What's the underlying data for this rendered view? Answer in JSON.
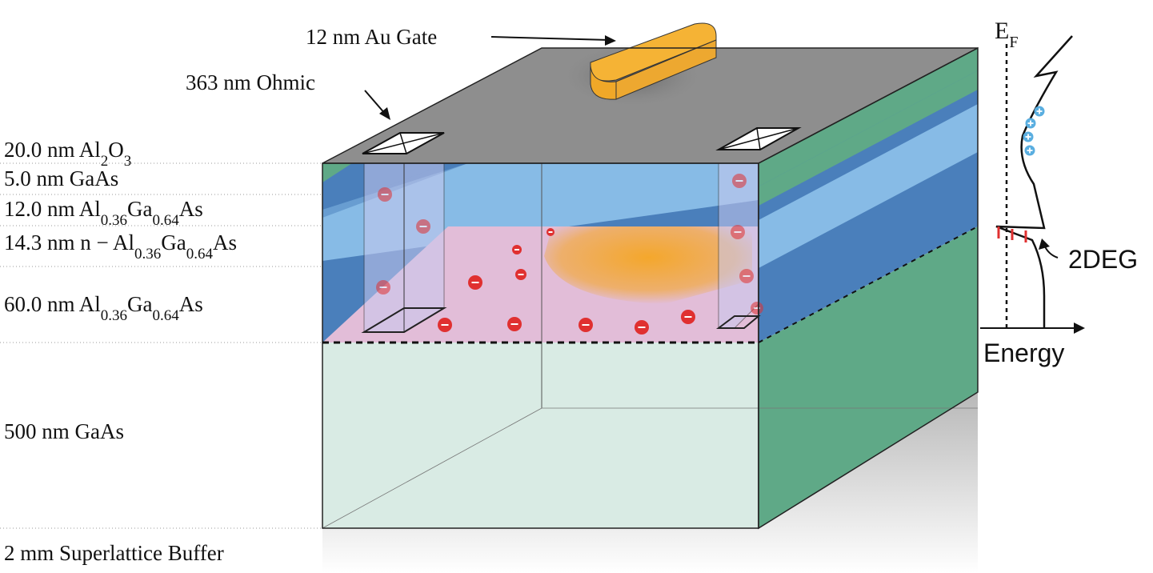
{
  "layers": [
    {
      "id": "al2o3",
      "prefix": "20.0 nm Al",
      "s1": "2",
      "mid": "O",
      "s2": "3",
      "suffix": ""
    },
    {
      "id": "gaas-cap",
      "prefix": "5.0 nm GaAs",
      "s1": "",
      "mid": "",
      "s2": "",
      "suffix": ""
    },
    {
      "id": "algaas-spacer",
      "prefix": "12.0 nm Al",
      "s1": "0.36",
      "mid": "Ga",
      "s2": "0.64",
      "suffix": "As"
    },
    {
      "id": "algaas-doped",
      "prefix": "14.3 nm n − Al",
      "s1": "0.36",
      "mid": "Ga",
      "s2": "0.64",
      "suffix": "As"
    },
    {
      "id": "algaas-barrier",
      "prefix": "60.0 nm Al",
      "s1": "0.36",
      "mid": "Ga",
      "s2": "0.64",
      "suffix": "As"
    },
    {
      "id": "gaas-buffer",
      "prefix": "500 nm GaAs",
      "s1": "",
      "mid": "",
      "s2": "",
      "suffix": ""
    },
    {
      "id": "superlattice",
      "prefix": "2 mm Superlattice Buffer",
      "s1": "",
      "mid": "",
      "s2": "",
      "suffix": ""
    }
  ],
  "labels": {
    "gate": "12 nm Au Gate",
    "ohmic": "363 nm Ohmic",
    "twodeg": "2DEG",
    "energy": "Energy",
    "fermi_main": "E",
    "fermi_sub": "F"
  },
  "colors": {
    "top_surface": "#8e8e8e",
    "green_layer": "#5fa987",
    "blue_dark": "#4a7fbb",
    "blue_light": "#87bbe6",
    "pink_region": "#e2bdd8",
    "gaas_bulk": "#d9ebe4",
    "gold_gate": "#f5b335",
    "electron": "#e03030",
    "hole": "#5aaee0"
  },
  "icons": {
    "electron": "minus-circle-icon",
    "hole": "plus-circle-icon",
    "ohmic": "pyramid-contact-icon"
  }
}
